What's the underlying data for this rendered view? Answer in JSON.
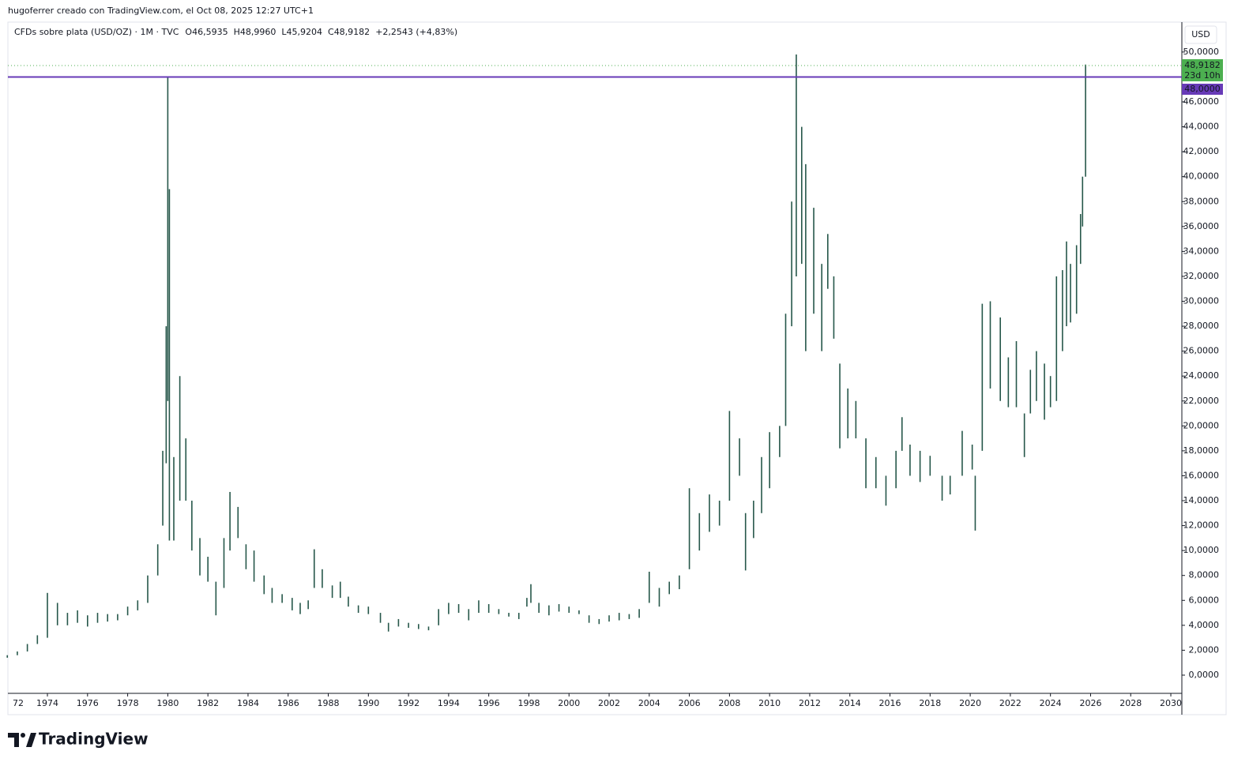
{
  "header": {
    "caption": "hugoferrer creado con TradingView.com, el Oct 08, 2025 12:27 UTC+1"
  },
  "brand": "TradingView",
  "chart_data": {
    "type": "range-bar",
    "symbol": "CFDs sobre plata (USD/OZ) · 1M · TVC",
    "ohlc": [
      {
        "key": "O",
        "value": "46,5935"
      },
      {
        "key": "H",
        "value": "48,9960"
      },
      {
        "key": "L",
        "value": "45,9204"
      },
      {
        "key": "C",
        "value": "48,9182"
      },
      {
        "key": "",
        "value": "+2,2543 (+4,83%)"
      }
    ],
    "currency": "USD",
    "color": "#26574a",
    "x": [
      1972.0,
      1972.5,
      1973.0,
      1973.5,
      1974.0,
      1974.5,
      1975.0,
      1975.5,
      1976.0,
      1976.5,
      1977.0,
      1977.5,
      1978.0,
      1978.5,
      1979.0,
      1979.5,
      1979.75,
      1979.92,
      1980.0,
      1980.08,
      1980.3,
      1980.6,
      1980.9,
      1981.2,
      1981.6,
      1982.0,
      1982.4,
      1982.8,
      1983.1,
      1983.5,
      1983.9,
      1984.3,
      1984.8,
      1985.2,
      1985.7,
      1986.2,
      1986.6,
      1987.0,
      1987.3,
      1987.7,
      1988.2,
      1988.6,
      1989.0,
      1989.5,
      1990.0,
      1990.6,
      1991.0,
      1991.5,
      1992.0,
      1992.5,
      1993.0,
      1993.5,
      1994.0,
      1994.5,
      1995.0,
      1995.5,
      1996.0,
      1996.5,
      1997.0,
      1997.5,
      1997.9,
      1998.1,
      1998.5,
      1999.0,
      1999.5,
      2000.0,
      2000.5,
      2001.0,
      2001.5,
      2002.0,
      2002.5,
      2003.0,
      2003.5,
      2004.0,
      2004.5,
      2005.0,
      2005.5,
      2006.0,
      2006.5,
      2007.0,
      2007.5,
      2008.0,
      2008.5,
      2008.8,
      2009.2,
      2009.6,
      2010.0,
      2010.5,
      2010.8,
      2011.1,
      2011.33,
      2011.6,
      2011.8,
      2012.2,
      2012.6,
      2012.9,
      2013.2,
      2013.5,
      2013.9,
      2014.3,
      2014.8,
      2015.3,
      2015.8,
      2016.3,
      2016.6,
      2017.0,
      2017.5,
      2018.0,
      2018.6,
      2019.0,
      2019.6,
      2020.1,
      2020.25,
      2020.6,
      2021.0,
      2021.5,
      2021.9,
      2022.3,
      2022.7,
      2023.0,
      2023.3,
      2023.7,
      2024.0,
      2024.3,
      2024.6,
      2024.8,
      2025.0,
      2025.3,
      2025.5,
      2025.6,
      2025.75
    ],
    "low": [
      1.4,
      1.6,
      1.9,
      2.5,
      3.0,
      4.0,
      4.0,
      4.2,
      3.9,
      4.2,
      4.3,
      4.4,
      4.8,
      5.2,
      5.8,
      8.0,
      12,
      17,
      22,
      10.8,
      10.8,
      14,
      14,
      10,
      8,
      7.5,
      4.8,
      7,
      10,
      11,
      8.5,
      7.5,
      6.5,
      5.8,
      5.8,
      5.2,
      4.9,
      5.3,
      7,
      7,
      6.2,
      6.2,
      5.5,
      5.0,
      4.9,
      4.2,
      3.5,
      3.9,
      3.8,
      3.7,
      3.6,
      4.0,
      4.9,
      5.0,
      4.4,
      5.0,
      5.0,
      4.9,
      4.7,
      4.5,
      5.5,
      5.8,
      5.0,
      4.8,
      5.1,
      5.0,
      4.9,
      4.2,
      4.1,
      4.3,
      4.4,
      4.5,
      4.6,
      5.8,
      5.5,
      6.5,
      6.9,
      8.5,
      10,
      11.5,
      12,
      14,
      16,
      8.4,
      11,
      13,
      15,
      17.5,
      20,
      28,
      32,
      33,
      26,
      29,
      26,
      31,
      27,
      18.2,
      19,
      19,
      15,
      15,
      13.6,
      15,
      18,
      16,
      15.5,
      16,
      14,
      14.5,
      16,
      16.5,
      11.6,
      18,
      23,
      22,
      21.5,
      21.5,
      17.5,
      21,
      22,
      20.5,
      21.5,
      22,
      26,
      28,
      28.3,
      29,
      33,
      36,
      40
    ],
    "high": [
      1.6,
      1.9,
      2.5,
      3.2,
      6.6,
      5.8,
      5.0,
      5.2,
      4.8,
      5.0,
      4.9,
      4.9,
      5.5,
      6.0,
      8.0,
      10.5,
      18,
      28,
      48,
      39,
      17.5,
      24,
      19,
      14,
      11,
      9.5,
      7.5,
      11,
      14.7,
      13.5,
      10.5,
      10,
      8,
      7,
      6.5,
      6.2,
      5.8,
      6.0,
      10.1,
      8.5,
      7.2,
      7.5,
      6.3,
      5.6,
      5.5,
      5.0,
      4.2,
      4.5,
      4.2,
      4.1,
      3.9,
      5.3,
      5.8,
      5.7,
      5.3,
      6.0,
      5.7,
      5.3,
      5.0,
      5.0,
      6.2,
      7.3,
      5.8,
      5.6,
      5.7,
      5.5,
      5.2,
      4.8,
      4.5,
      4.8,
      5.0,
      4.9,
      5.3,
      8.3,
      7.0,
      7.5,
      8.0,
      15.0,
      13,
      14.5,
      14,
      21.2,
      19,
      13,
      14,
      17.5,
      19.5,
      20,
      29,
      38,
      49.8,
      44,
      41,
      37.5,
      33,
      35.4,
      32,
      25,
      23,
      22,
      19,
      17.5,
      16,
      18,
      20.7,
      18.5,
      18,
      17.6,
      16,
      16,
      19.6,
      18.5,
      16,
      29.8,
      30,
      28.7,
      25.5,
      26.8,
      21,
      24.5,
      26,
      25,
      24,
      32,
      32.5,
      34.8,
      33,
      34.5,
      37,
      40,
      48.996
    ],
    "xlim": [
      1972.03,
      2030.55
    ],
    "ylim": [
      -1.46,
      52.4
    ],
    "xticks": [
      {
        "value": 1972,
        "label": "72"
      },
      1974,
      1976,
      1978,
      1980,
      1982,
      1984,
      1986,
      1988,
      1990,
      1992,
      1994,
      1996,
      1998,
      2000,
      2002,
      2004,
      2006,
      2008,
      2010,
      2012,
      2014,
      2016,
      2018,
      2020,
      2022,
      2024,
      2026,
      2028,
      2030
    ],
    "yticks": [
      {
        "value": 0,
        "label": "0,0000"
      },
      {
        "value": 2,
        "label": "2,0000"
      },
      {
        "value": 4,
        "label": "4,0000"
      },
      {
        "value": 6,
        "label": "6,0000"
      },
      {
        "value": 8,
        "label": "8,0000"
      },
      {
        "value": 10,
        "label": "10,0000"
      },
      {
        "value": 12,
        "label": "12,0000"
      },
      {
        "value": 14,
        "label": "14,0000"
      },
      {
        "value": 16,
        "label": "16,0000"
      },
      {
        "value": 18,
        "label": "18,0000"
      },
      {
        "value": 20,
        "label": "20,0000"
      },
      {
        "value": 22,
        "label": "22,0000"
      },
      {
        "value": 24,
        "label": "24,0000"
      },
      {
        "value": 26,
        "label": "26,0000"
      },
      {
        "value": 28,
        "label": "28,0000"
      },
      {
        "value": 30,
        "label": "30,0000"
      },
      {
        "value": 32,
        "label": "32,0000"
      },
      {
        "value": 34,
        "label": "34,0000"
      },
      {
        "value": 36,
        "label": "36,0000"
      },
      {
        "value": 38,
        "label": "38,0000"
      },
      {
        "value": 40,
        "label": "40,0000"
      },
      {
        "value": 42,
        "label": "42,0000"
      },
      {
        "value": 44,
        "label": "44,0000"
      },
      {
        "value": 46,
        "label": "46,0000"
      },
      {
        "value": 50,
        "label": "50,0000"
      }
    ],
    "last_price": {
      "value": 48.9182,
      "label": "48,9182",
      "countdown": "23d 10h",
      "color": "#4caf50"
    },
    "hline": {
      "value": 48,
      "label": "48,0000",
      "color": "#673ab7"
    },
    "grid": false
  }
}
